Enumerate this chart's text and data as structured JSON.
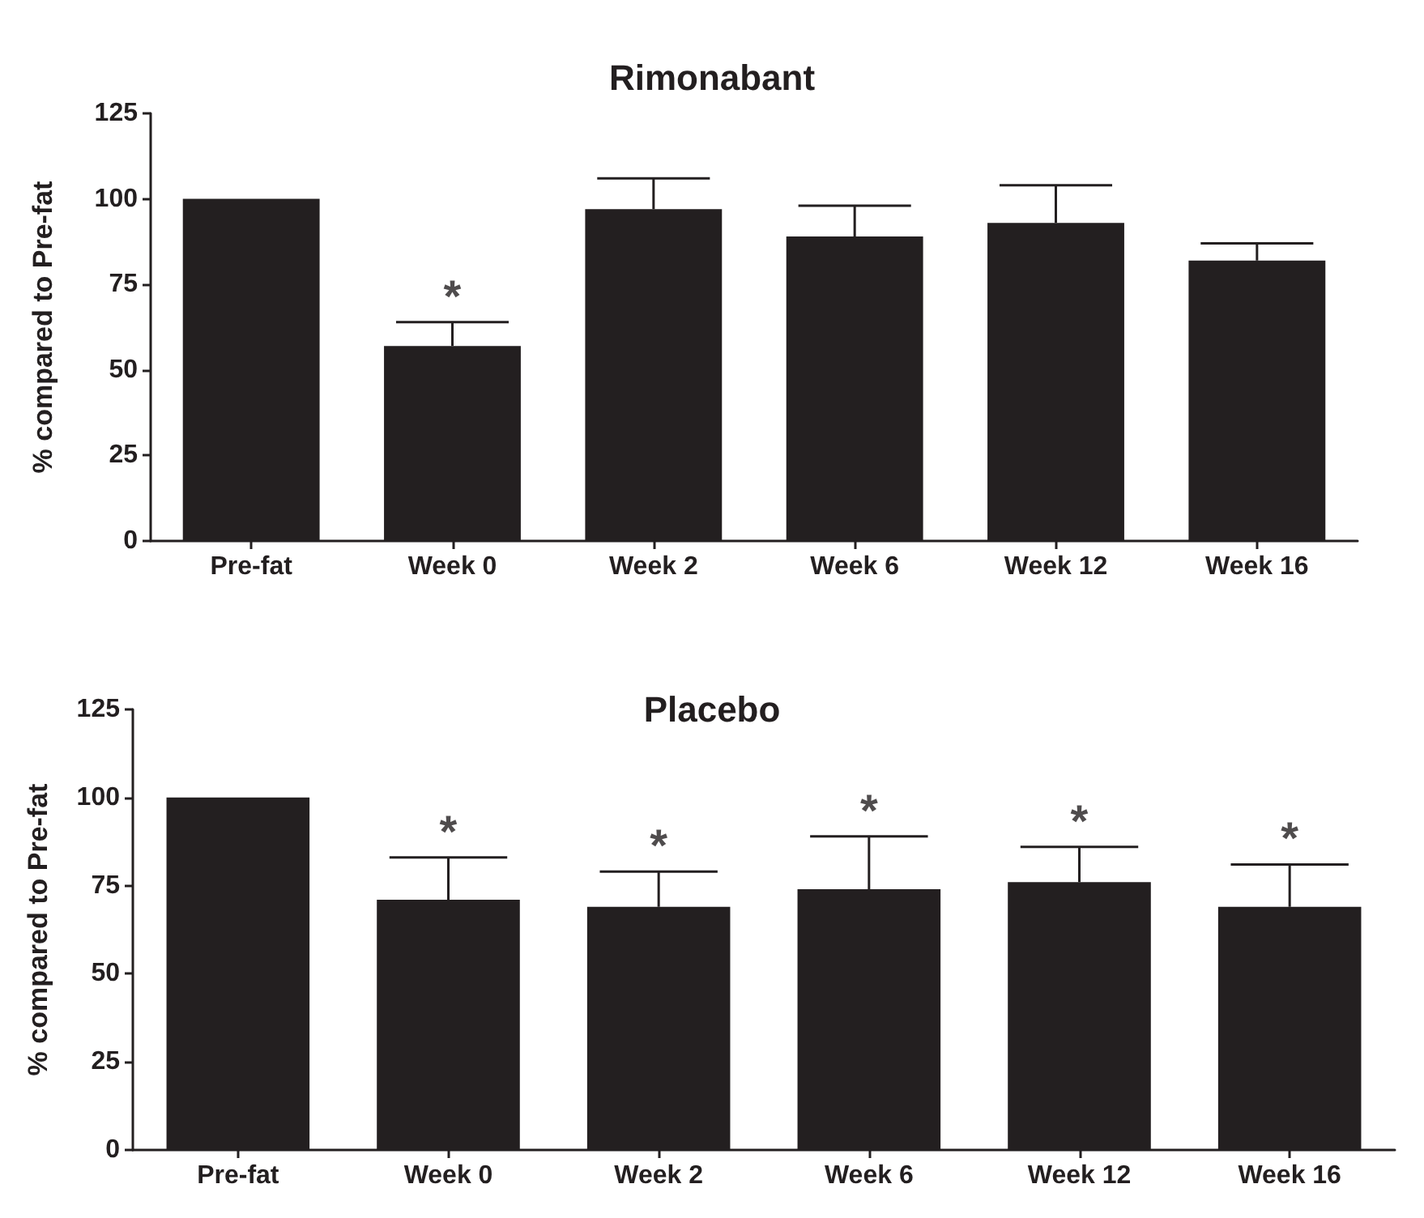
{
  "chart_data": [
    {
      "type": "bar",
      "title": "Rimonabant",
      "ylabel": "% compared to Pre-fat",
      "categories": [
        "Pre-fat",
        "Week 0",
        "Week 2",
        "Week 6",
        "Week 12",
        "Week 16"
      ],
      "values": [
        100,
        57,
        97,
        89,
        93,
        82
      ],
      "color": "#231f20",
      "errors": [
        null,
        [
          57,
          64
        ],
        [
          97,
          106
        ],
        [
          89,
          98
        ],
        [
          93,
          104
        ],
        [
          82,
          87
        ]
      ],
      "ylim": [
        0,
        125
      ],
      "yticks": [
        0,
        25,
        50,
        75,
        100,
        125
      ],
      "grid": false,
      "annotations": [
        "*"
      ]
    },
    {
      "type": "bar",
      "title": "Placebo",
      "ylabel": "% compared to Pre-fat",
      "categories": [
        "Pre-fat",
        "Week 0",
        "Week 2",
        "Week 6",
        "Week 12",
        "Week 16"
      ],
      "values": [
        100,
        71,
        69,
        74,
        76,
        69
      ],
      "color": "#231f20",
      "errors": [
        null,
        [
          71,
          83
        ],
        [
          69,
          79
        ],
        [
          74,
          89
        ],
        [
          76,
          86
        ],
        [
          69,
          81
        ]
      ],
      "ylim": [
        0,
        125
      ],
      "yticks": [
        0,
        25,
        50,
        75,
        100,
        125
      ],
      "grid": false,
      "annotations": [
        "*",
        "*",
        "*",
        "*",
        "*"
      ]
    }
  ]
}
